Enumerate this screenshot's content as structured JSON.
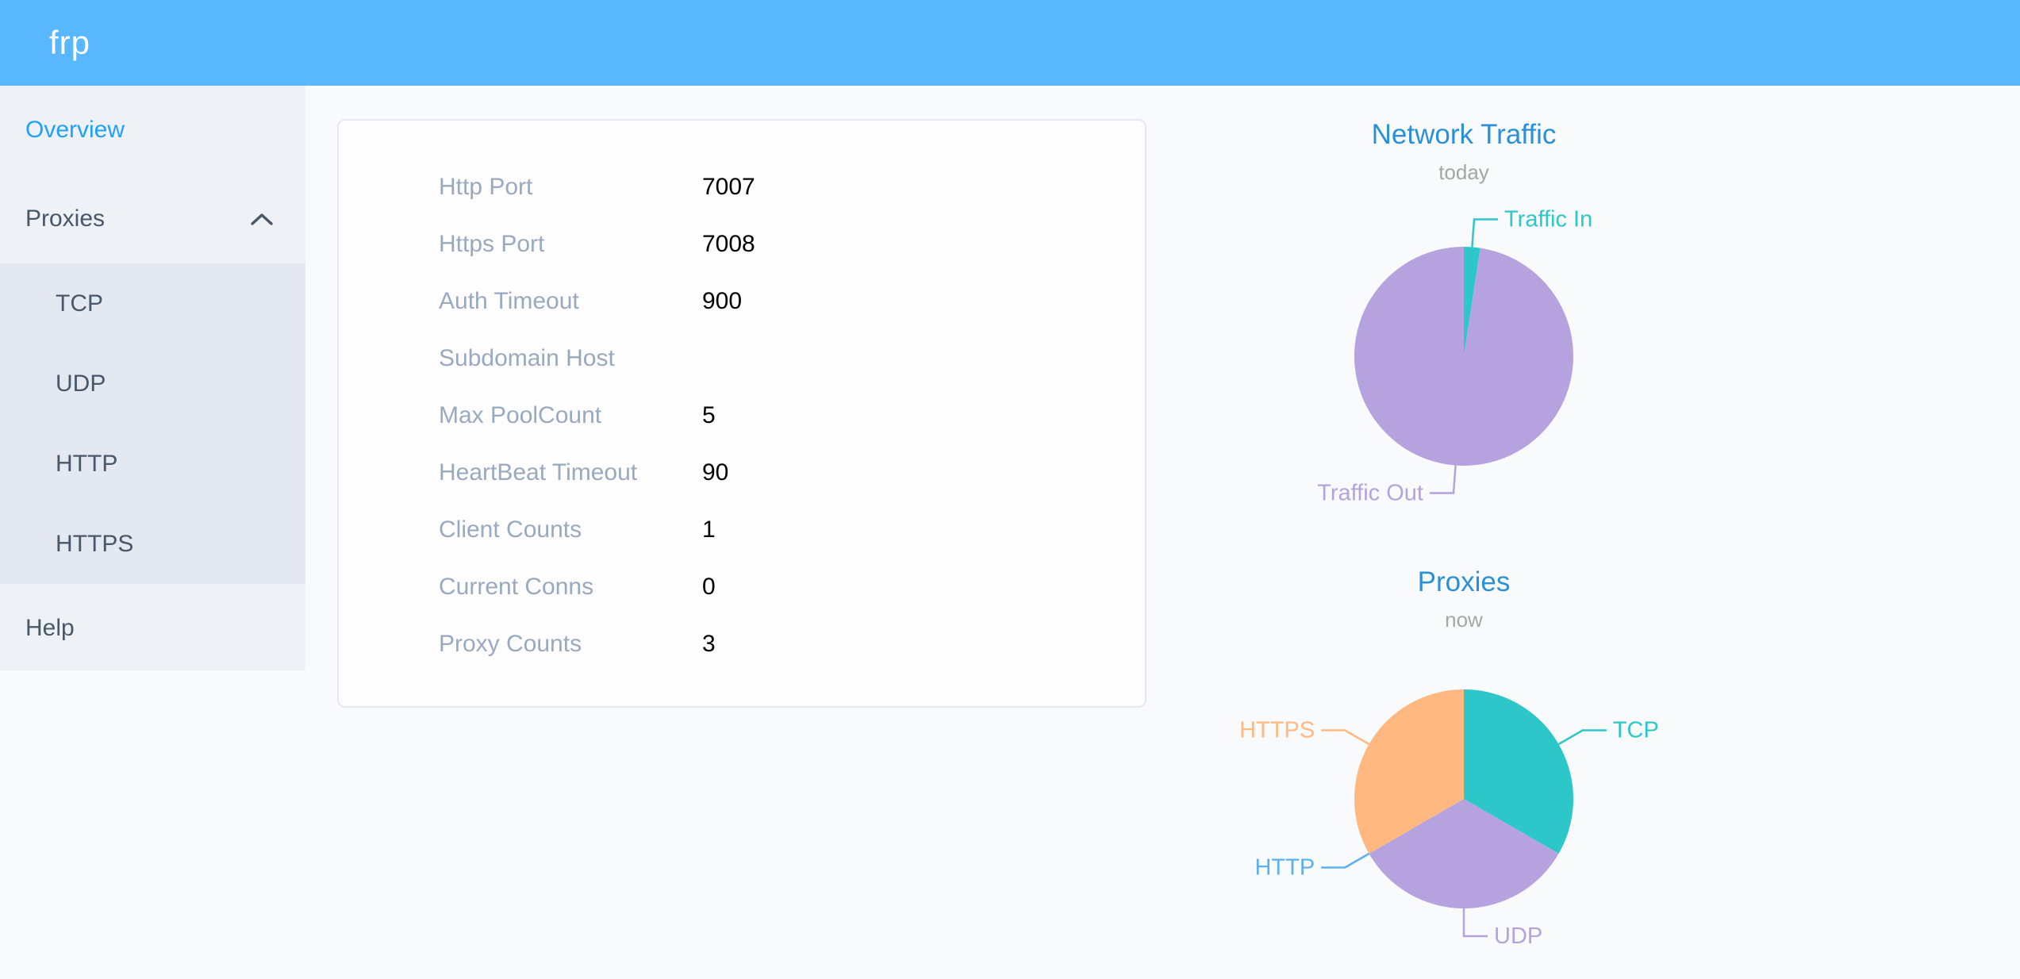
{
  "header": {
    "logo": "frp"
  },
  "sidebar": {
    "overview_label": "Overview",
    "proxies_label": "Proxies",
    "submenu": [
      "TCP",
      "UDP",
      "HTTP",
      "HTTPS"
    ],
    "help_label": "Help"
  },
  "server_info": {
    "rows": [
      {
        "label": "Http Port",
        "value": "7007"
      },
      {
        "label": "Https Port",
        "value": "7008"
      },
      {
        "label": "Auth Timeout",
        "value": "900"
      },
      {
        "label": "Subdomain Host",
        "value": ""
      },
      {
        "label": "Max PoolCount",
        "value": "5"
      },
      {
        "label": "HeartBeat Timeout",
        "value": "90"
      },
      {
        "label": "Client Counts",
        "value": "1"
      },
      {
        "label": "Current Conns",
        "value": "0"
      },
      {
        "label": "Proxy Counts",
        "value": "3"
      }
    ]
  },
  "chart_data": [
    {
      "type": "pie",
      "title": "Network Traffic",
      "subtitle": "today",
      "start_angle": "top",
      "direction": "clockwise",
      "labels": "outside-with-leader-lines",
      "slices": [
        {
          "name": "Traffic In",
          "value": 2.4,
          "color": "#2ec7c9"
        },
        {
          "name": "Traffic Out",
          "value": 97.6,
          "color": "#b6a2de"
        }
      ]
    },
    {
      "type": "pie",
      "title": "Proxies",
      "subtitle": "now",
      "start_angle": "top",
      "direction": "clockwise",
      "labels": "outside-with-leader-lines",
      "slices": [
        {
          "name": "TCP",
          "value": 1,
          "color": "#2ec7c9"
        },
        {
          "name": "UDP",
          "value": 1,
          "color": "#b6a2de"
        },
        {
          "name": "HTTP",
          "value": 0,
          "color": "#5ab1ef"
        },
        {
          "name": "HTTPS",
          "value": 1,
          "color": "#ffb980"
        }
      ]
    }
  ],
  "colors": {
    "header_bg": "#58b7ff",
    "menu_bg": "#eef1f6",
    "submenu_bg": "#e4e8f1",
    "menu_text": "#48576a",
    "active_menu_item": "#20a0ff",
    "chart_title": "#2c90d9",
    "card_label": "#99a9bf"
  }
}
